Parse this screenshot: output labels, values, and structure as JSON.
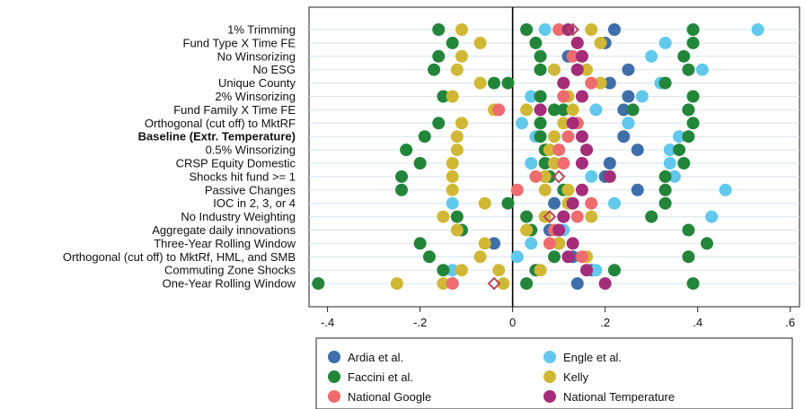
{
  "chart_data": {
    "type": "scatter",
    "title": "",
    "xlabel": "",
    "ylabel": "",
    "xlim": [
      -0.44,
      0.62
    ],
    "x_ticks": [
      -0.4,
      -0.2,
      0,
      0.2,
      0.4,
      0.6
    ],
    "x_tick_labels": [
      "-.4",
      "-.2",
      "0",
      ".2",
      ".4",
      ".6"
    ],
    "reference_line_x": 0,
    "grid": "horizontal",
    "legend_position": "bottom",
    "rows": [
      "1% Trimming",
      "Fund Type X Time FE",
      "No Winsorizing",
      "No ESG",
      "Unique County",
      "2% Winsorizing",
      "Fund Family X Time FE",
      "Orthogonal (cut off) to MktRF",
      "Baseline (Extr. Temperature)",
      "0.5% Winsorizing",
      "CRSP Equity Domestic",
      "Shocks hit fund >= 1",
      "Passive Changes",
      "IOC in 2, 3, or 4",
      "No Industry Weighting",
      "Aggregate daily innovations",
      "Three-Year Rolling Window",
      "Orthogonal (cut off) to MktRf, HML, and SMB",
      "Commuting Zone Shocks",
      "One-Year Rolling Window"
    ],
    "bold_row": "Baseline (Extr. Temperature)",
    "hollow_marker_label": "◇",
    "hollow_markers": [
      {
        "row": 0,
        "x": 0.13
      },
      {
        "row": 11,
        "x": 0.1
      },
      {
        "row": 14,
        "x": 0.08
      },
      {
        "row": 19,
        "x": -0.04
      }
    ],
    "series": [
      {
        "name": "Ardia et al.",
        "color": "#3e6fa8",
        "values": [
          [
            0,
            0.22
          ],
          [
            1,
            0.2
          ],
          [
            2,
            0.12
          ],
          [
            3,
            0.25
          ],
          [
            4,
            0.21
          ],
          [
            5,
            0.25
          ],
          [
            6,
            0.24
          ],
          [
            7,
            0.25
          ],
          [
            8,
            0.24
          ],
          [
            9,
            0.27
          ],
          [
            10,
            0.21
          ],
          [
            11,
            0.2
          ],
          [
            12,
            0.27
          ],
          [
            13,
            0.09
          ],
          [
            14,
            0.11
          ],
          [
            15,
            0.08
          ],
          [
            16,
            -0.04
          ],
          [
            17,
            0.13
          ],
          [
            18,
            0.17
          ],
          [
            19,
            0.14
          ]
        ]
      },
      {
        "name": "Engle et al.",
        "color": "#62c8ec",
        "values": [
          [
            0,
            0.53
          ],
          [
            0,
            0.07
          ],
          [
            1,
            0.33
          ],
          [
            2,
            0.3
          ],
          [
            3,
            0.41
          ],
          [
            4,
            0.32
          ],
          [
            5,
            0.28
          ],
          [
            5,
            0.04
          ],
          [
            6,
            0.38
          ],
          [
            6,
            0.18
          ],
          [
            7,
            0.25
          ],
          [
            7,
            0.02
          ],
          [
            8,
            0.36
          ],
          [
            8,
            0.05
          ],
          [
            9,
            0.34
          ],
          [
            9,
            0.1
          ],
          [
            10,
            0.34
          ],
          [
            10,
            0.04
          ],
          [
            11,
            0.35
          ],
          [
            11,
            0.17
          ],
          [
            12,
            0.46
          ],
          [
            13,
            0.22
          ],
          [
            13,
            -0.13
          ],
          [
            14,
            0.43
          ],
          [
            15,
            0.11
          ],
          [
            16,
            0.04
          ],
          [
            17,
            0.01
          ],
          [
            18,
            -0.13
          ],
          [
            18,
            0.18
          ],
          [
            19,
            -0.13
          ]
        ]
      },
      {
        "name": "Faccini et al.",
        "color": "#23853a",
        "values": [
          [
            0,
            -0.16
          ],
          [
            0,
            0.03
          ],
          [
            0,
            0.39
          ],
          [
            1,
            -0.13
          ],
          [
            1,
            0.05
          ],
          [
            1,
            0.39
          ],
          [
            2,
            -0.16
          ],
          [
            2,
            0.06
          ],
          [
            2,
            0.37
          ],
          [
            3,
            -0.17
          ],
          [
            3,
            0.06
          ],
          [
            3,
            0.38
          ],
          [
            4,
            -0.04
          ],
          [
            4,
            -0.01
          ],
          [
            4,
            0.33
          ],
          [
            5,
            -0.15
          ],
          [
            5,
            0.06
          ],
          [
            5,
            0.39
          ],
          [
            6,
            0.09
          ],
          [
            6,
            0.11
          ],
          [
            6,
            0.26
          ],
          [
            6,
            0.38
          ],
          [
            7,
            -0.16
          ],
          [
            7,
            0.06
          ],
          [
            7,
            0.39
          ],
          [
            8,
            -0.19
          ],
          [
            8,
            0.06
          ],
          [
            8,
            0.38
          ],
          [
            9,
            -0.23
          ],
          [
            9,
            0.07
          ],
          [
            9,
            0.36
          ],
          [
            10,
            -0.2
          ],
          [
            10,
            0.07
          ],
          [
            10,
            0.37
          ],
          [
            11,
            -0.24
          ],
          [
            11,
            0.08
          ],
          [
            11,
            0.33
          ],
          [
            12,
            -0.24
          ],
          [
            12,
            0.11
          ],
          [
            12,
            0.33
          ],
          [
            13,
            -0.01
          ],
          [
            13,
            0.33
          ],
          [
            14,
            -0.12
          ],
          [
            14,
            0.03
          ],
          [
            14,
            0.3
          ],
          [
            15,
            -0.11
          ],
          [
            15,
            0.04
          ],
          [
            15,
            0.38
          ],
          [
            16,
            -0.2
          ],
          [
            16,
            0.1
          ],
          [
            16,
            0.42
          ],
          [
            17,
            -0.18
          ],
          [
            17,
            0.09
          ],
          [
            17,
            0.38
          ],
          [
            18,
            -0.15
          ],
          [
            18,
            0.05
          ],
          [
            18,
            0.22
          ],
          [
            19,
            -0.42
          ],
          [
            19,
            0.03
          ],
          [
            19,
            0.39
          ]
        ]
      },
      {
        "name": "Kelly",
        "color": "#d0b836",
        "values": [
          [
            0,
            -0.11
          ],
          [
            0,
            0.17
          ],
          [
            1,
            -0.07
          ],
          [
            1,
            0.19
          ],
          [
            2,
            -0.11
          ],
          [
            2,
            0.15
          ],
          [
            3,
            -0.12
          ],
          [
            3,
            0.09
          ],
          [
            3,
            0.16
          ],
          [
            4,
            -0.07
          ],
          [
            4,
            0.19
          ],
          [
            5,
            -0.13
          ],
          [
            5,
            0.12
          ],
          [
            6,
            -0.04
          ],
          [
            6,
            0.03
          ],
          [
            6,
            0.13
          ],
          [
            7,
            -0.11
          ],
          [
            7,
            0.11
          ],
          [
            8,
            -0.12
          ],
          [
            8,
            0.09
          ],
          [
            9,
            -0.12
          ],
          [
            9,
            0.08
          ],
          [
            10,
            -0.13
          ],
          [
            10,
            0.09
          ],
          [
            11,
            -0.13
          ],
          [
            11,
            0.07
          ],
          [
            12,
            -0.13
          ],
          [
            12,
            0.07
          ],
          [
            12,
            0.12
          ],
          [
            13,
            -0.06
          ],
          [
            13,
            0.12
          ],
          [
            14,
            -0.15
          ],
          [
            14,
            0.07
          ],
          [
            14,
            0.17
          ],
          [
            15,
            -0.12
          ],
          [
            15,
            0.03
          ],
          [
            16,
            -0.06
          ],
          [
            16,
            0.1
          ],
          [
            17,
            -0.07
          ],
          [
            17,
            0.16
          ],
          [
            18,
            -0.11
          ],
          [
            18,
            -0.03
          ],
          [
            18,
            0.06
          ],
          [
            19,
            -0.25
          ],
          [
            19,
            -0.15
          ],
          [
            19,
            -0.02
          ]
        ]
      },
      {
        "name": "National Google",
        "color": "#ef6c6e",
        "values": [
          [
            0,
            0.1
          ],
          [
            1,
            0.14
          ],
          [
            2,
            0.13
          ],
          [
            3,
            0.14
          ],
          [
            4,
            0.17
          ],
          [
            5,
            0.11
          ],
          [
            6,
            -0.03
          ],
          [
            7,
            0.14
          ],
          [
            8,
            0.12
          ],
          [
            9,
            0.1
          ],
          [
            10,
            0.11
          ],
          [
            11,
            0.05
          ],
          [
            12,
            0.01
          ],
          [
            13,
            0.17
          ],
          [
            14,
            0.14
          ],
          [
            15,
            0.09
          ],
          [
            16,
            0.08
          ],
          [
            17,
            0.15
          ],
          [
            18,
            0.16
          ],
          [
            19,
            -0.13
          ]
        ]
      },
      {
        "name": "National Temperature",
        "color": "#a42c79",
        "values": [
          [
            0,
            0.12
          ],
          [
            1,
            0.14
          ],
          [
            2,
            0.15
          ],
          [
            3,
            0.14
          ],
          [
            4,
            0.11
          ],
          [
            5,
            0.15
          ],
          [
            6,
            0.06
          ],
          [
            7,
            0.13
          ],
          [
            8,
            0.15
          ],
          [
            9,
            0.16
          ],
          [
            10,
            0.15
          ],
          [
            11,
            0.21
          ],
          [
            12,
            0.15
          ],
          [
            13,
            0.13
          ],
          [
            14,
            0.11
          ],
          [
            15,
            0.1
          ],
          [
            16,
            0.13
          ],
          [
            17,
            0.12
          ],
          [
            18,
            0.16
          ],
          [
            19,
            0.2
          ]
        ]
      }
    ]
  }
}
